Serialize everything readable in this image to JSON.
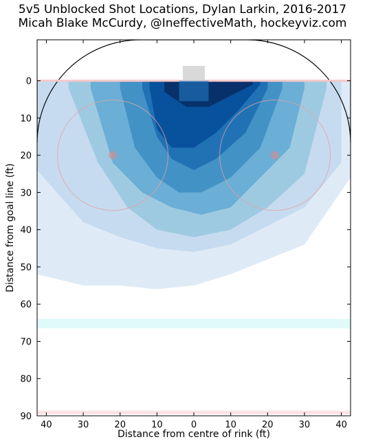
{
  "title_line1": "5v5 Unblocked Shot Locations, Dylan Larkin, 2016-2017",
  "title_line2": "Micah Blake McCurdy, @IneffectiveMath, hockeyviz.com",
  "chart_data": {
    "type": "heatmap",
    "title": "5v5 Unblocked Shot Locations, Dylan Larkin, 2016-2017",
    "subtitle": "Micah Blake McCurdy, @IneffectiveMath, hockeyviz.com",
    "xlabel": "Distance from centre of rink (ft)",
    "ylabel": "Distance from goal line (ft)",
    "xlim": [
      -42.5,
      42.5
    ],
    "ylim": [
      90,
      -11
    ],
    "x_ticks": [
      -40,
      -30,
      -20,
      -10,
      0,
      10,
      20,
      30,
      40
    ],
    "x_tick_labels": [
      "40",
      "30",
      "20",
      "10",
      "0",
      "10",
      "20",
      "30",
      "40"
    ],
    "y_ticks": [
      0,
      10,
      20,
      30,
      40,
      50,
      60,
      70,
      80,
      90
    ],
    "y_tick_labels": [
      "0",
      "10",
      "20",
      "30",
      "40",
      "50",
      "60",
      "70",
      "80",
      "90"
    ],
    "grid": false,
    "colormap": [
      "#deebf7",
      "#c6dbef",
      "#9ecae1",
      "#6baed6",
      "#4292c6",
      "#2171b5",
      "#08519c",
      "#08306b"
    ],
    "density_levels": [
      {
        "level": 1,
        "boundary_x": [
          -42.5,
          -30,
          -20,
          -10,
          0,
          10,
          20,
          30,
          42.5
        ],
        "boundary_y": [
          52,
          55,
          55,
          56,
          55,
          52,
          48,
          44,
          26
        ]
      },
      {
        "level": 2,
        "boundary_x": [
          -42.5,
          -30,
          -20,
          -10,
          0,
          10,
          20,
          30,
          40
        ],
        "boundary_y": [
          24,
          38,
          42,
          45,
          46,
          44,
          39,
          34,
          22
        ]
      },
      {
        "level": 3,
        "boundary_x": [
          -34,
          -26,
          -18,
          -10,
          0,
          10,
          20,
          30,
          36
        ],
        "boundary_y": [
          2,
          22,
          34,
          40,
          42,
          40,
          34,
          25,
          2
        ]
      },
      {
        "level": 4,
        "boundary_x": [
          -28,
          -22,
          -14,
          -6,
          2,
          10,
          18,
          26,
          30
        ],
        "boundary_y": [
          2,
          22,
          30,
          34,
          36,
          34,
          26,
          18,
          2
        ]
      },
      {
        "level": 5,
        "boundary_x": [
          -20,
          -16,
          -10,
          -4,
          2,
          10,
          18,
          24
        ],
        "boundary_y": [
          2,
          18,
          26,
          30,
          30,
          26,
          18,
          2
        ]
      },
      {
        "level": 6,
        "boundary_x": [
          -14,
          -10,
          -6,
          0,
          6,
          14,
          20
        ],
        "boundary_y": [
          2,
          15,
          21,
          24,
          21,
          14,
          2
        ]
      },
      {
        "level": 7,
        "boundary_x": [
          -12,
          -10,
          -6,
          0,
          6,
          12,
          18
        ],
        "boundary_y": [
          2,
          13,
          18,
          18,
          14,
          8,
          1
        ]
      },
      {
        "level": 8,
        "boundary_x": [
          -8,
          -2,
          4,
          10,
          16
        ],
        "boundary_y": [
          3,
          7,
          7,
          4,
          1
        ]
      }
    ]
  }
}
